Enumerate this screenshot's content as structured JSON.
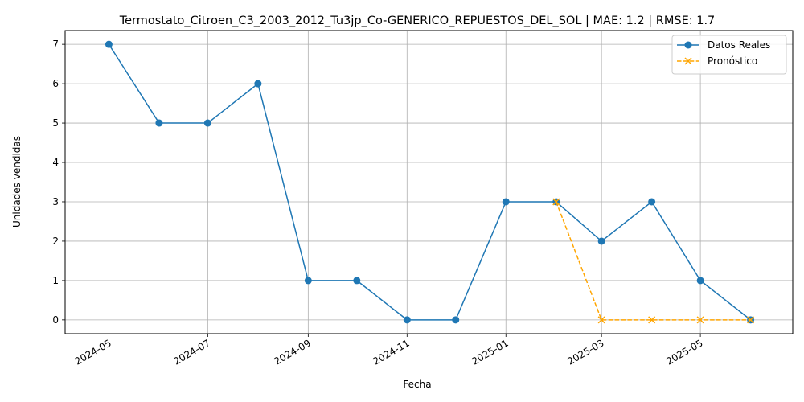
{
  "chart_data": {
    "type": "line",
    "title": "Termostato_Citroen_C3_2003_2012_Tu3jp_Co-GENERICO_REPUESTOS_DEL_SOL | MAE: 1.2 | RMSE: 1.7",
    "xlabel": "Fecha",
    "ylabel": "Unidades vendidas",
    "ylim": [
      -0.35,
      7.35
    ],
    "xlim": [
      "2024-04-04",
      "2025-06-27"
    ],
    "grid": true,
    "legend_position": "top-right",
    "x_ticks": [
      "2024-05",
      "2024-07",
      "2024-09",
      "2024-11",
      "2025-01",
      "2025-03",
      "2025-05"
    ],
    "y_ticks": [
      0,
      1,
      2,
      3,
      4,
      5,
      6,
      7
    ],
    "series": [
      {
        "name": "Datos Reales",
        "color": "#1f77b4",
        "marker": "circle",
        "linestyle": "solid",
        "x": [
          "2024-05-01",
          "2024-06-01",
          "2024-07-01",
          "2024-08-01",
          "2024-09-01",
          "2024-10-01",
          "2024-11-01",
          "2024-12-01",
          "2025-01-01",
          "2025-02-01",
          "2025-03-01",
          "2025-04-01",
          "2025-05-01",
          "2025-06-01"
        ],
        "values": [
          7,
          5,
          5,
          6,
          1,
          1,
          0,
          0,
          3,
          3,
          2,
          3,
          1,
          0
        ]
      },
      {
        "name": "Pronóstico",
        "color": "#ffa500",
        "marker": "x",
        "linestyle": "dashed",
        "x": [
          "2025-02-01",
          "2025-03-01",
          "2025-04-01",
          "2025-05-01",
          "2025-06-01"
        ],
        "values": [
          3,
          0,
          0,
          0,
          0
        ]
      }
    ]
  }
}
